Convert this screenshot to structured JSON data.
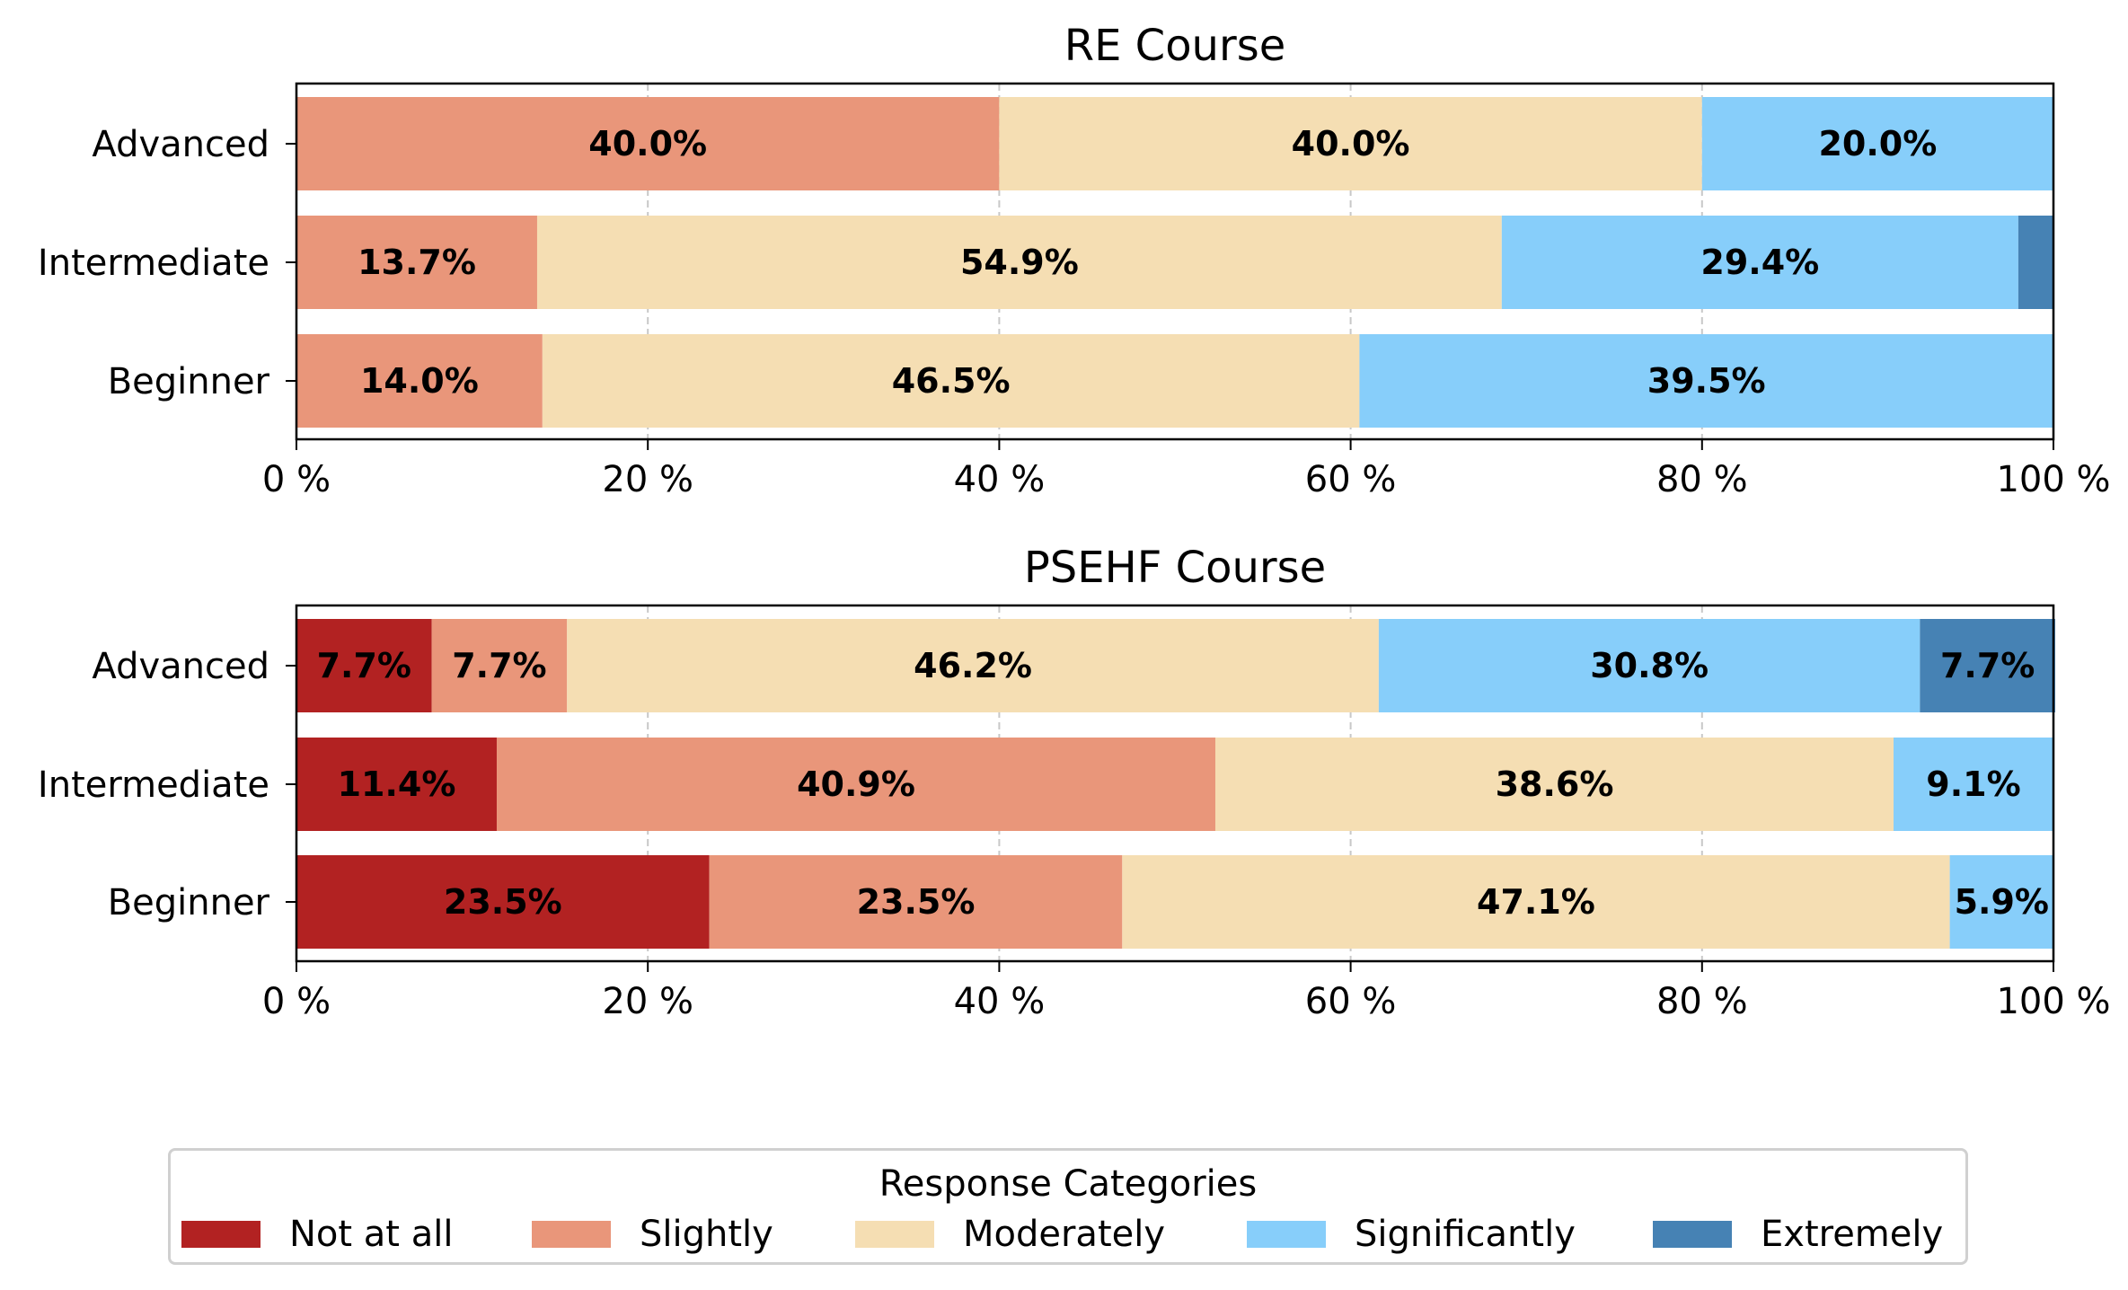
{
  "chart_data": [
    {
      "type": "bar",
      "orientation": "horizontal-stacked-percent",
      "title": "RE Course",
      "categories": [
        "Advanced",
        "Intermediate",
        "Beginner"
      ],
      "xlim": [
        0,
        100
      ],
      "xticks": [
        "0 %",
        "20 %",
        "40 %",
        "60 %",
        "80 %",
        "100 %"
      ],
      "series": [
        {
          "name": "Not at all",
          "values": [
            0,
            0,
            0
          ],
          "labels": [
            "",
            "",
            ""
          ]
        },
        {
          "name": "Slightly",
          "values": [
            40.0,
            13.7,
            14.0
          ],
          "labels": [
            "40.0%",
            "13.7%",
            "14.0%"
          ]
        },
        {
          "name": "Moderately",
          "values": [
            40.0,
            54.9,
            46.5
          ],
          "labels": [
            "40.0%",
            "54.9%",
            "46.5%"
          ]
        },
        {
          "name": "Significantly",
          "values": [
            20.0,
            29.4,
            39.5
          ],
          "labels": [
            "20.0%",
            "29.4%",
            "39.5%"
          ]
        },
        {
          "name": "Extremely",
          "values": [
            0,
            2.0,
            0
          ],
          "labels": [
            "",
            "",
            ""
          ]
        }
      ]
    },
    {
      "type": "bar",
      "orientation": "horizontal-stacked-percent",
      "title": "PSEHF Course",
      "categories": [
        "Advanced",
        "Intermediate",
        "Beginner"
      ],
      "xlim": [
        0,
        100
      ],
      "xticks": [
        "0 %",
        "20 %",
        "40 %",
        "60 %",
        "80 %",
        "100 %"
      ],
      "series": [
        {
          "name": "Not at all",
          "values": [
            7.7,
            11.4,
            23.5
          ],
          "labels": [
            "7.7%",
            "11.4%",
            "23.5%"
          ]
        },
        {
          "name": "Slightly",
          "values": [
            7.7,
            40.9,
            23.5
          ],
          "labels": [
            "7.7%",
            "40.9%",
            "23.5%"
          ]
        },
        {
          "name": "Moderately",
          "values": [
            46.2,
            38.6,
            47.1
          ],
          "labels": [
            "46.2%",
            "38.6%",
            "47.1%"
          ]
        },
        {
          "name": "Significantly",
          "values": [
            30.8,
            9.1,
            5.9
          ],
          "labels": [
            "30.8%",
            "9.1%",
            "5.9%"
          ]
        },
        {
          "name": "Extremely",
          "values": [
            7.7,
            0,
            0
          ],
          "labels": [
            "7.7%",
            "",
            ""
          ]
        }
      ]
    }
  ],
  "legend": {
    "title": "Response Categories",
    "placement": "bottom-center",
    "entries": [
      {
        "name": "Not at all",
        "color": "#b22222"
      },
      {
        "name": "Slightly",
        "color": "#e9967a"
      },
      {
        "name": "Moderately",
        "color": "#f5deb3"
      },
      {
        "name": "Significantly",
        "color": "#87cefa"
      },
      {
        "name": "Extremely",
        "color": "#4682b4"
      }
    ]
  }
}
